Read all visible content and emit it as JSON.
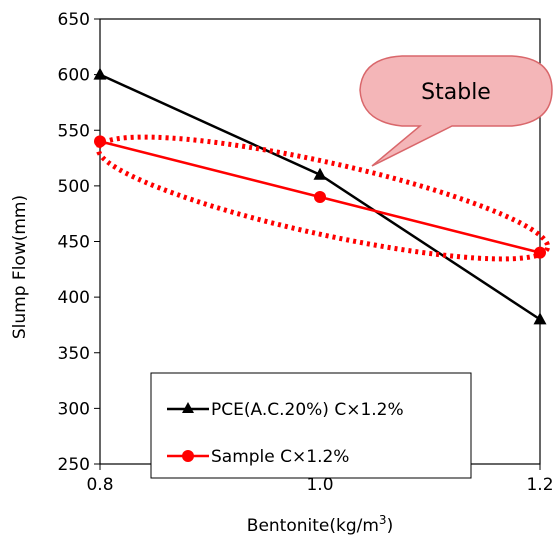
{
  "chart_data": {
    "type": "line",
    "x": [
      0.8,
      1.0,
      1.2
    ],
    "series": [
      {
        "name": "PCE(A.C.20%) C×1.2%",
        "values": [
          600,
          510,
          380
        ],
        "color": "#000000",
        "marker": "triangle"
      },
      {
        "name": "Sample C×1.2%",
        "values": [
          540,
          490,
          440
        ],
        "color": "#ff0000",
        "marker": "circle"
      }
    ],
    "xlim": [
      0.8,
      1.2
    ],
    "ylim": [
      250,
      650
    ],
    "xticks": [
      0.8,
      1.0,
      1.2
    ],
    "xtick_labels": [
      "0.8",
      "1.0",
      "1.2"
    ],
    "yticks": [
      250,
      300,
      350,
      400,
      450,
      500,
      550,
      600,
      650
    ],
    "xlabel": "Bentonite(kg/m",
    "xlabel_sup": "3",
    "xlabel_end": ")",
    "ylabel": "Slump Flow(mm)",
    "grid": false,
    "legend_position": "bottom-left",
    "annotation": {
      "text": "Stable",
      "fill": "#f4b6b8",
      "stroke": "#d9676b"
    },
    "highlight": {
      "shape": "dotted-ellipse",
      "color": "#ff0000",
      "around_series": "Sample C×1.2%"
    }
  }
}
